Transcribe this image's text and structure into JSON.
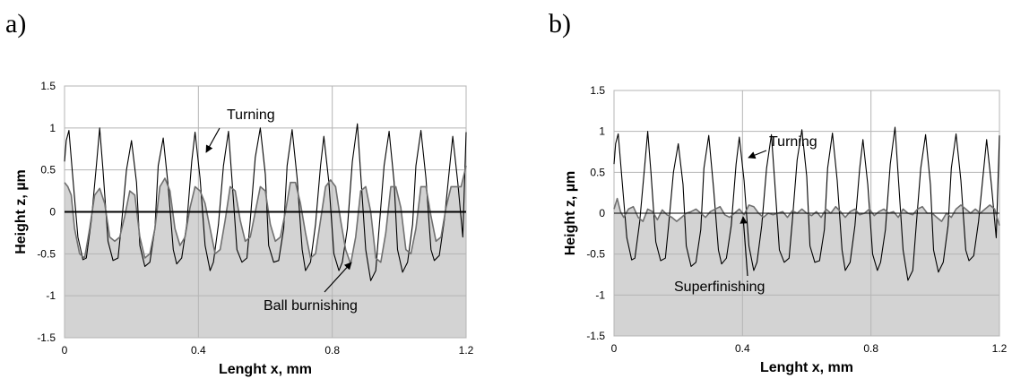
{
  "chart_data": [
    {
      "panel_label": "a)",
      "type": "line",
      "xlabel": "Lenght x, mm",
      "ylabel": "Height z, µm",
      "xlim": [
        0,
        1.2
      ],
      "ylim": [
        -1.5,
        1.5
      ],
      "xticks": [
        0,
        0.4,
        0.8,
        1.2
      ],
      "xtick_labels": [
        "0",
        "0.4",
        "0.8",
        "1.2"
      ],
      "yticks": [
        -1.5,
        -1,
        -0.5,
        0,
        0.5,
        1,
        1.5
      ],
      "ytick_labels": [
        "-1.5",
        "-1",
        "-0.5",
        "0",
        "0.5",
        "1",
        "1.5"
      ],
      "grid": true,
      "zero_line_bold": true,
      "series": [
        {
          "name": "Turning",
          "color": "#000000",
          "filled": false,
          "x": [
            0,
            0.005,
            0.013,
            0.025,
            0.04,
            0.055,
            0.065,
            0.08,
            0.095,
            0.105,
            0.115,
            0.13,
            0.145,
            0.16,
            0.17,
            0.185,
            0.2,
            0.215,
            0.225,
            0.24,
            0.255,
            0.27,
            0.28,
            0.295,
            0.31,
            0.325,
            0.335,
            0.35,
            0.365,
            0.38,
            0.39,
            0.405,
            0.42,
            0.435,
            0.445,
            0.46,
            0.475,
            0.49,
            0.5,
            0.515,
            0.53,
            0.545,
            0.555,
            0.57,
            0.585,
            0.6,
            0.61,
            0.625,
            0.64,
            0.655,
            0.665,
            0.68,
            0.695,
            0.71,
            0.72,
            0.735,
            0.75,
            0.765,
            0.775,
            0.79,
            0.805,
            0.82,
            0.83,
            0.845,
            0.86,
            0.875,
            0.885,
            0.9,
            0.915,
            0.93,
            0.94,
            0.955,
            0.97,
            0.985,
            0.995,
            1.01,
            1.025,
            1.04,
            1.05,
            1.065,
            1.08,
            1.095,
            1.105,
            1.12,
            1.135,
            1.15,
            1.16,
            1.175,
            1.19,
            1.2
          ],
          "y": [
            0.6,
            0.85,
            0.97,
            0.4,
            -0.3,
            -0.57,
            -0.55,
            -0.1,
            0.55,
            1.0,
            0.5,
            -0.35,
            -0.58,
            -0.55,
            -0.15,
            0.5,
            0.85,
            0.35,
            -0.4,
            -0.65,
            -0.6,
            -0.2,
            0.55,
            0.88,
            0.3,
            -0.45,
            -0.62,
            -0.55,
            -0.15,
            0.6,
            0.95,
            0.4,
            -0.4,
            -0.7,
            -0.6,
            -0.15,
            0.55,
            0.96,
            0.4,
            -0.45,
            -0.6,
            -0.55,
            -0.1,
            0.65,
            1.0,
            0.45,
            -0.4,
            -0.6,
            -0.58,
            -0.2,
            0.55,
            0.98,
            0.4,
            -0.45,
            -0.7,
            -0.6,
            -0.15,
            0.55,
            0.9,
            0.35,
            -0.5,
            -0.7,
            -0.6,
            -0.2,
            0.6,
            1.05,
            0.45,
            -0.45,
            -0.82,
            -0.7,
            -0.2,
            0.55,
            0.96,
            0.35,
            -0.45,
            -0.72,
            -0.6,
            -0.15,
            0.55,
            0.97,
            0.4,
            -0.45,
            -0.58,
            -0.52,
            -0.1,
            0.5,
            0.9,
            0.35,
            -0.3,
            0.95
          ]
        },
        {
          "name": "Ball burnishing",
          "color": "#707070",
          "filled": true,
          "fill": "#d3d3d3",
          "x": [
            0,
            0.01,
            0.02,
            0.03,
            0.045,
            0.06,
            0.075,
            0.09,
            0.105,
            0.12,
            0.135,
            0.15,
            0.165,
            0.18,
            0.195,
            0.21,
            0.225,
            0.24,
            0.255,
            0.27,
            0.285,
            0.3,
            0.315,
            0.33,
            0.345,
            0.36,
            0.375,
            0.39,
            0.405,
            0.42,
            0.435,
            0.45,
            0.465,
            0.48,
            0.495,
            0.51,
            0.525,
            0.54,
            0.555,
            0.57,
            0.585,
            0.6,
            0.615,
            0.63,
            0.645,
            0.66,
            0.675,
            0.69,
            0.705,
            0.72,
            0.735,
            0.75,
            0.765,
            0.78,
            0.795,
            0.81,
            0.825,
            0.84,
            0.855,
            0.87,
            0.885,
            0.9,
            0.915,
            0.93,
            0.945,
            0.96,
            0.975,
            0.99,
            1.005,
            1.02,
            1.035,
            1.05,
            1.065,
            1.08,
            1.095,
            1.11,
            1.125,
            1.14,
            1.155,
            1.17,
            1.185,
            1.2
          ],
          "y": [
            0.35,
            0.3,
            0.2,
            -0.2,
            -0.5,
            -0.55,
            -0.2,
            0.2,
            0.28,
            0.1,
            -0.3,
            -0.35,
            -0.3,
            -0.05,
            0.25,
            0.2,
            -0.3,
            -0.55,
            -0.5,
            -0.2,
            0.3,
            0.4,
            0.25,
            -0.2,
            -0.4,
            -0.3,
            0.05,
            0.3,
            0.25,
            0.1,
            -0.2,
            -0.5,
            -0.45,
            -0.1,
            0.3,
            0.25,
            -0.1,
            -0.35,
            -0.3,
            0.0,
            0.3,
            0.25,
            -0.15,
            -0.35,
            -0.3,
            0.0,
            0.35,
            0.35,
            0.1,
            -0.25,
            -0.55,
            -0.5,
            -0.1,
            0.3,
            0.38,
            0.3,
            -0.1,
            -0.45,
            -0.62,
            -0.3,
            0.25,
            0.3,
            0.0,
            -0.55,
            -0.6,
            -0.25,
            0.3,
            0.3,
            0.05,
            -0.45,
            -0.5,
            -0.2,
            0.3,
            0.3,
            -0.05,
            -0.35,
            -0.3,
            0.05,
            0.3,
            0.3,
            0.3,
            0.55
          ]
        }
      ],
      "annotations": [
        {
          "text": "Turning",
          "at_x": 0.44,
          "at_y": 0.68
        },
        {
          "text": "Ball burnishing",
          "at_x": 0.87,
          "at_y": -0.6
        }
      ]
    },
    {
      "panel_label": "b)",
      "type": "line",
      "xlabel": "Lenght x, mm",
      "ylabel": "Height z, µm",
      "xlim": [
        0,
        1.2
      ],
      "ylim": [
        -1.5,
        1.5
      ],
      "xticks": [
        0,
        0.4,
        0.8,
        1.2
      ],
      "xtick_labels": [
        "0",
        "0.4",
        "0.8",
        "1.2"
      ],
      "yticks": [
        -1.5,
        -1,
        -0.5,
        0,
        0.5,
        1,
        1.5
      ],
      "ytick_labels": [
        "-1.5",
        "-1",
        "-0.5",
        "0",
        "0.5",
        "1",
        "1.5"
      ],
      "grid": true,
      "zero_line_bold": false,
      "series": [
        {
          "name": "Turning",
          "color": "#000000",
          "filled": false,
          "x": [
            0,
            0.005,
            0.013,
            0.025,
            0.04,
            0.055,
            0.065,
            0.08,
            0.095,
            0.105,
            0.115,
            0.13,
            0.145,
            0.16,
            0.17,
            0.185,
            0.2,
            0.215,
            0.225,
            0.24,
            0.255,
            0.27,
            0.28,
            0.295,
            0.31,
            0.325,
            0.335,
            0.35,
            0.365,
            0.38,
            0.39,
            0.405,
            0.42,
            0.435,
            0.445,
            0.46,
            0.475,
            0.49,
            0.5,
            0.515,
            0.53,
            0.545,
            0.555,
            0.57,
            0.585,
            0.6,
            0.61,
            0.625,
            0.64,
            0.655,
            0.665,
            0.68,
            0.695,
            0.71,
            0.72,
            0.735,
            0.75,
            0.765,
            0.775,
            0.79,
            0.805,
            0.82,
            0.83,
            0.845,
            0.86,
            0.875,
            0.885,
            0.9,
            0.915,
            0.93,
            0.94,
            0.955,
            0.97,
            0.985,
            0.995,
            1.01,
            1.025,
            1.04,
            1.05,
            1.065,
            1.08,
            1.095,
            1.105,
            1.12,
            1.135,
            1.15,
            1.16,
            1.175,
            1.19,
            1.2
          ],
          "y": [
            0.6,
            0.85,
            0.97,
            0.4,
            -0.3,
            -0.57,
            -0.55,
            -0.1,
            0.55,
            1.0,
            0.5,
            -0.35,
            -0.58,
            -0.55,
            -0.15,
            0.5,
            0.85,
            0.35,
            -0.4,
            -0.65,
            -0.6,
            -0.2,
            0.55,
            0.95,
            0.3,
            -0.45,
            -0.62,
            -0.55,
            -0.15,
            0.6,
            0.93,
            0.4,
            -0.4,
            -0.7,
            -0.6,
            -0.15,
            0.55,
            0.96,
            0.4,
            -0.45,
            -0.6,
            -0.55,
            -0.1,
            0.65,
            1.02,
            0.45,
            -0.4,
            -0.6,
            -0.58,
            -0.2,
            0.55,
            0.98,
            0.4,
            -0.45,
            -0.7,
            -0.6,
            -0.15,
            0.55,
            0.9,
            0.35,
            -0.5,
            -0.7,
            -0.6,
            -0.2,
            0.6,
            1.05,
            0.45,
            -0.45,
            -0.82,
            -0.7,
            -0.2,
            0.55,
            0.96,
            0.35,
            -0.45,
            -0.72,
            -0.6,
            -0.15,
            0.55,
            0.97,
            0.4,
            -0.45,
            -0.58,
            -0.52,
            -0.1,
            0.5,
            0.9,
            0.35,
            -0.3,
            0.95
          ]
        },
        {
          "name": "Superfinishing",
          "color": "#707070",
          "filled": true,
          "fill": "#d3d3d3",
          "x": [
            0,
            0.01,
            0.02,
            0.03,
            0.045,
            0.06,
            0.075,
            0.09,
            0.105,
            0.12,
            0.135,
            0.15,
            0.165,
            0.18,
            0.195,
            0.21,
            0.225,
            0.24,
            0.255,
            0.27,
            0.285,
            0.3,
            0.315,
            0.33,
            0.345,
            0.36,
            0.375,
            0.39,
            0.405,
            0.42,
            0.435,
            0.45,
            0.465,
            0.48,
            0.495,
            0.51,
            0.525,
            0.54,
            0.555,
            0.57,
            0.585,
            0.6,
            0.615,
            0.63,
            0.645,
            0.66,
            0.675,
            0.69,
            0.705,
            0.72,
            0.735,
            0.75,
            0.765,
            0.78,
            0.795,
            0.81,
            0.825,
            0.84,
            0.855,
            0.87,
            0.885,
            0.9,
            0.915,
            0.93,
            0.945,
            0.96,
            0.975,
            0.99,
            1.005,
            1.02,
            1.035,
            1.05,
            1.065,
            1.08,
            1.095,
            1.11,
            1.125,
            1.14,
            1.155,
            1.17,
            1.185,
            1.2
          ],
          "y": [
            0.05,
            0.18,
            0.02,
            -0.05,
            0.05,
            0.08,
            -0.05,
            -0.1,
            0.05,
            0.02,
            -0.08,
            0.04,
            -0.02,
            -0.05,
            -0.1,
            -0.05,
            0.0,
            0.02,
            0.05,
            0.0,
            -0.05,
            0.02,
            0.05,
            0.08,
            -0.02,
            -0.05,
            0.0,
            0.05,
            -0.02,
            0.1,
            0.08,
            0.0,
            -0.05,
            0.0,
            -0.02,
            0.0,
            0.02,
            -0.05,
            0.03,
            0.0,
            0.05,
            0.0,
            -0.03,
            0.02,
            -0.05,
            0.05,
            0.0,
            0.08,
            0.02,
            -0.05,
            0.02,
            0.05,
            -0.02,
            0.0,
            0.05,
            -0.03,
            0.02,
            0.05,
            0.0,
            0.02,
            -0.05,
            0.05,
            0.0,
            -0.02,
            0.05,
            0.08,
            0.0,
            0.0,
            -0.05,
            -0.1,
            0.0,
            -0.05,
            0.05,
            0.1,
            0.05,
            0.0,
            0.05,
            0.0,
            0.05,
            0.1,
            0.05,
            -0.15
          ]
        }
      ],
      "annotations": [
        {
          "text": "Turning",
          "at_x": 0.42,
          "at_y": 0.65
        },
        {
          "text": "Superfinishing",
          "at_x": 0.4,
          "at_y": -0.03
        }
      ]
    }
  ]
}
